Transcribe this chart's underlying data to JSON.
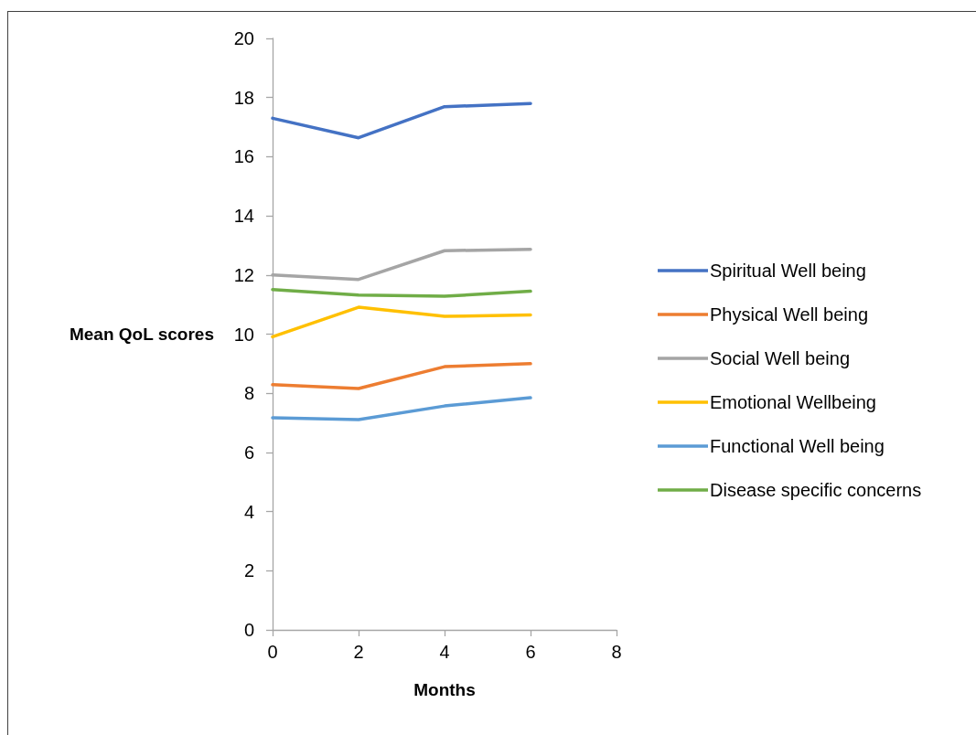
{
  "chart_data": {
    "type": "line",
    "xlabel": "Months",
    "ylabel": "Mean QoL scores",
    "x": [
      0,
      2,
      4,
      6
    ],
    "xlim": [
      0,
      8
    ],
    "xticks": [
      0,
      2,
      4,
      6,
      8
    ],
    "ylim": [
      0,
      20
    ],
    "yticks": [
      0,
      2,
      4,
      6,
      8,
      10,
      12,
      14,
      16,
      18,
      20
    ],
    "grid": false,
    "legend": "right",
    "marker": "none",
    "line_style": "solid",
    "series": [
      {
        "name": "Spiritual Well being",
        "color": "#4472c4",
        "values": [
          17.3,
          16.64,
          17.69,
          17.8
        ]
      },
      {
        "name": "Physical Well being",
        "color": "#ed7d31",
        "values": [
          8.29,
          8.16,
          8.9,
          9.0
        ]
      },
      {
        "name": "Social Well being",
        "color": "#a5a5a5",
        "values": [
          12.0,
          11.85,
          12.82,
          12.87
        ]
      },
      {
        "name": "Emotional Wellbeing",
        "color": "#ffc000",
        "values": [
          9.91,
          10.91,
          10.6,
          10.65
        ]
      },
      {
        "name": "Functional Well being",
        "color": "#5b9bd5",
        "values": [
          7.17,
          7.11,
          7.57,
          7.85
        ]
      },
      {
        "name": "Disease specific concerns",
        "color": "#70ad47",
        "values": [
          11.51,
          11.32,
          11.28,
          11.45
        ]
      }
    ]
  }
}
